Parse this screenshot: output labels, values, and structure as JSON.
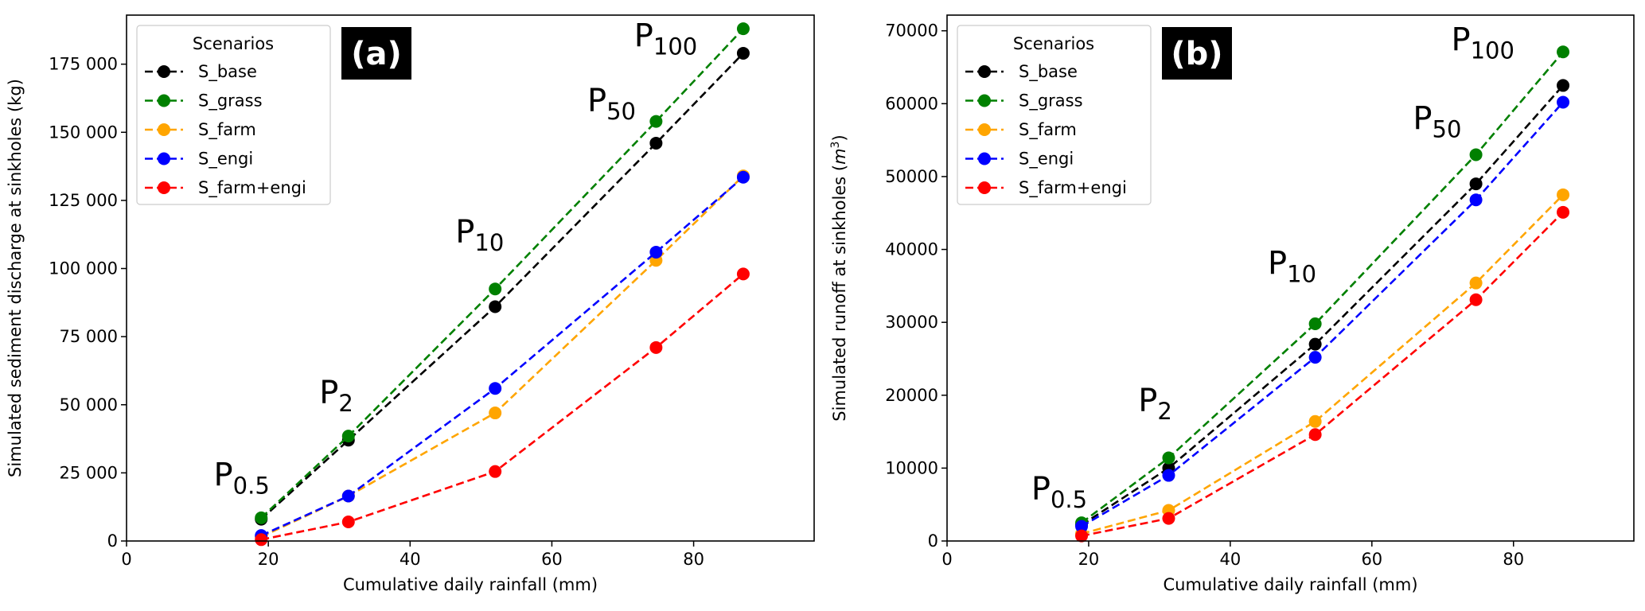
{
  "chart_data": [
    {
      "type": "line",
      "panel_label": "(a)",
      "xlabel": "Cumulative daily rainfall (mm)",
      "ylabel": "Simulated sediment discharge at sinkholes (kg)",
      "ylabel_unit": "",
      "xlim": [
        0,
        97
      ],
      "ylim": [
        0,
        193000
      ],
      "xticks": [
        0,
        20,
        40,
        60,
        80
      ],
      "yticks": [
        0,
        25000,
        50000,
        75000,
        100000,
        125000,
        150000,
        175000
      ],
      "ytick_labels": [
        "0",
        "25 000",
        "50 000",
        "75 000",
        "100 000",
        "125 000",
        "150 000",
        "175 000"
      ],
      "x": [
        19,
        31.3,
        52,
        74.7,
        87
      ],
      "legend": {
        "title": "Scenarios",
        "position": "top-left"
      },
      "series": [
        {
          "name": "S_base",
          "color": "#000000",
          "values": [
            8000,
            37000,
            86000,
            146000,
            179000
          ]
        },
        {
          "name": "S_grass",
          "color": "#008000",
          "values": [
            8500,
            38500,
            92500,
            154000,
            188000
          ]
        },
        {
          "name": "S_farm",
          "color": "#ffa500",
          "values": [
            1500,
            16500,
            47000,
            103000,
            134000
          ]
        },
        {
          "name": "S_engi",
          "color": "#0000ff",
          "values": [
            2000,
            16500,
            56000,
            106000,
            133500
          ]
        },
        {
          "name": "S_farm+engi",
          "color": "#ff0000",
          "values": [
            500,
            7000,
            25500,
            71000,
            98000
          ]
        }
      ],
      "annotations": [
        {
          "base": "P",
          "sub": "0.5",
          "x": 12.3,
          "y": 20300
        },
        {
          "base": "P",
          "sub": "2",
          "x": 27.2,
          "y": 50500
        },
        {
          "base": "P",
          "sub": "10",
          "x": 46.4,
          "y": 109500
        },
        {
          "base": "P",
          "sub": "50",
          "x": 65,
          "y": 157700
        },
        {
          "base": "P",
          "sub": "100",
          "x": 71.6,
          "y": 181400
        }
      ]
    },
    {
      "type": "line",
      "panel_label": "(b)",
      "xlabel": "Cumulative daily rainfall (mm)",
      "ylabel": "Simulated runoff at sinkholes (",
      "ylabel_unit": "m",
      "ylabel_sup": "3",
      "ylabel_end": ")",
      "xlim": [
        0,
        97
      ],
      "ylim": [
        0,
        72150
      ],
      "xticks": [
        0,
        20,
        40,
        60,
        80
      ],
      "yticks": [
        0,
        10000,
        20000,
        30000,
        40000,
        50000,
        60000,
        70000
      ],
      "ytick_labels": [
        "0",
        "10000",
        "20000",
        "30000",
        "40000",
        "50000",
        "60000",
        "70000"
      ],
      "x": [
        19,
        31.3,
        52,
        74.7,
        87
      ],
      "legend": {
        "title": "Scenarios",
        "position": "top-left"
      },
      "series": [
        {
          "name": "S_base",
          "color": "#000000",
          "values": [
            2200,
            10000,
            27000,
            49000,
            62500
          ]
        },
        {
          "name": "S_grass",
          "color": "#008000",
          "values": [
            2500,
            11400,
            29800,
            53000,
            67100
          ]
        },
        {
          "name": "S_farm",
          "color": "#ffa500",
          "values": [
            1000,
            4200,
            16400,
            35400,
            47500
          ]
        },
        {
          "name": "S_engi",
          "color": "#0000ff",
          "values": [
            2000,
            9000,
            25200,
            46800,
            60200
          ]
        },
        {
          "name": "S_farm+engi",
          "color": "#ff0000",
          "values": [
            700,
            3100,
            14600,
            33100,
            45100
          ]
        }
      ],
      "annotations": [
        {
          "base": "P",
          "sub": "0.5",
          "x": 11.9,
          "y": 5700
        },
        {
          "base": "P",
          "sub": "2",
          "x": 27,
          "y": 17800
        },
        {
          "base": "P",
          "sub": "10",
          "x": 45.3,
          "y": 36600
        },
        {
          "base": "P",
          "sub": "50",
          "x": 65.8,
          "y": 56500
        },
        {
          "base": "P",
          "sub": "100",
          "x": 71.2,
          "y": 67300
        }
      ]
    }
  ]
}
